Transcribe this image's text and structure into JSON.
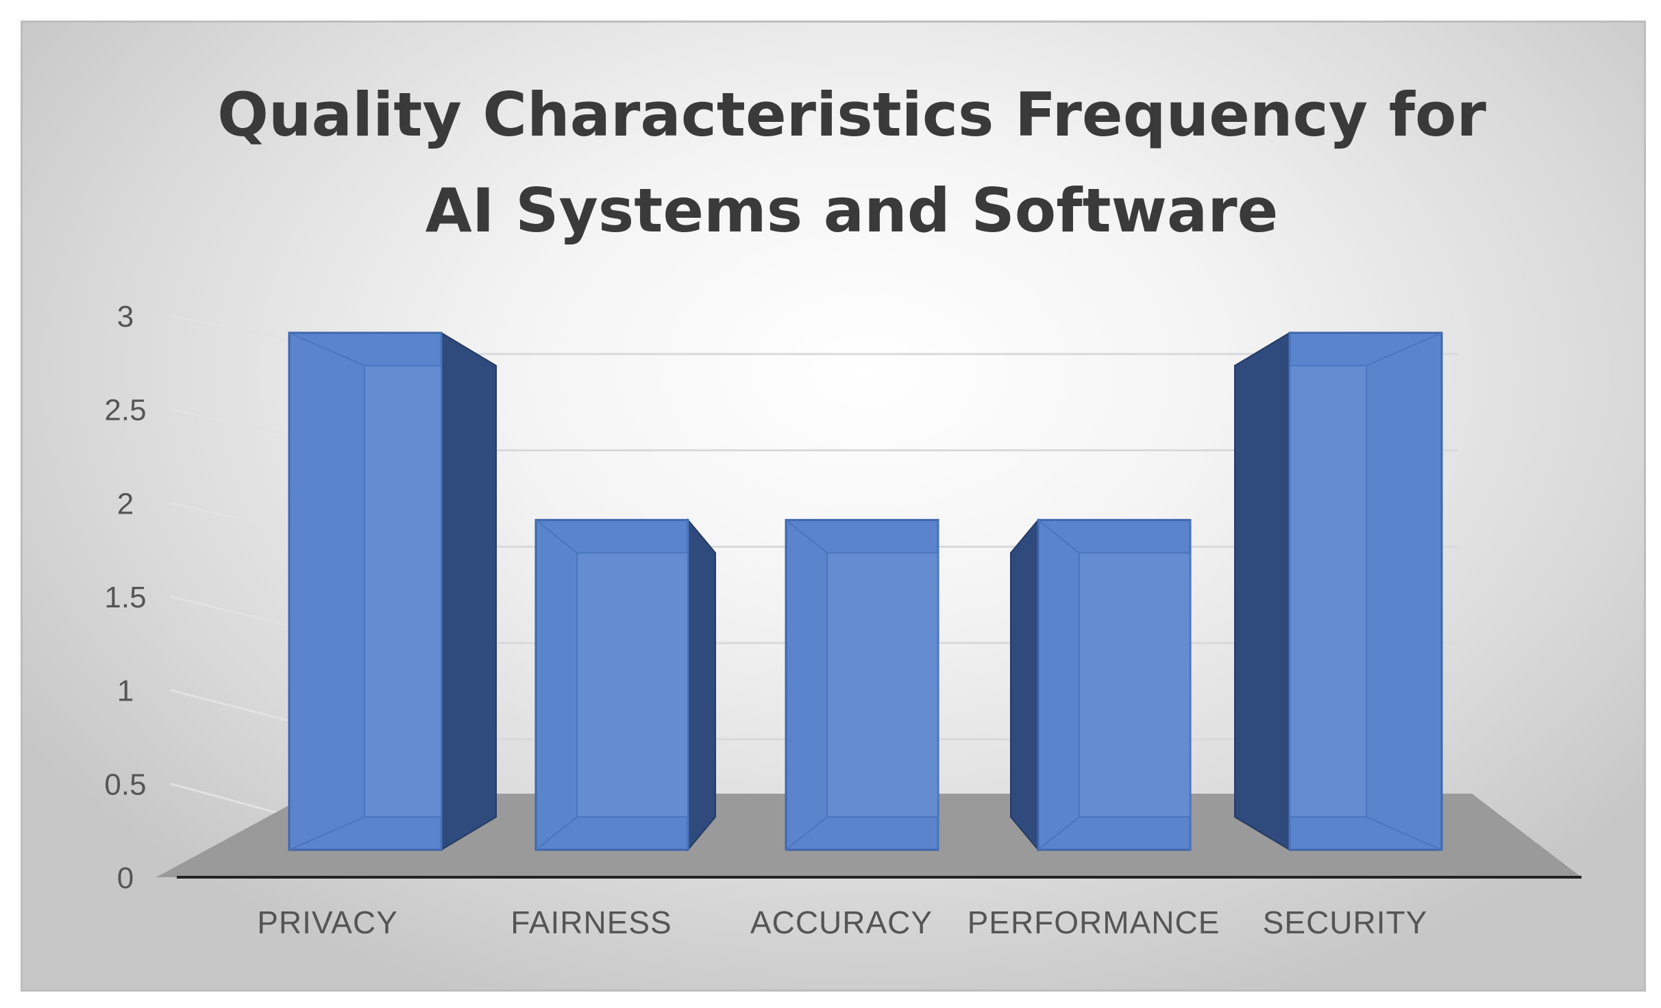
{
  "chart_data": {
    "type": "bar",
    "title_lines": [
      "Quality Characteristics Frequency for",
      "AI Systems and Software"
    ],
    "categories": [
      "PRIVACY",
      "FAIRNESS",
      "ACCURACY",
      "PERFORMANCE",
      "SECURITY"
    ],
    "values": [
      3,
      2,
      2,
      2,
      3
    ],
    "yticks": [
      "0",
      "0.5",
      "1",
      "1.5",
      "2",
      "2.5",
      "3"
    ],
    "ylim": [
      0,
      3
    ],
    "ytick_step": 0.5,
    "style": "3d-column",
    "grid": true,
    "legend": "none",
    "colors": {
      "bar_front": "#5a84cc",
      "bar_inner": "#6b93d6",
      "bar_side": "#2f4a7c",
      "bar_edge": "#3f67ad",
      "floor": "#9a9a9a",
      "axis": "#222222"
    }
  }
}
